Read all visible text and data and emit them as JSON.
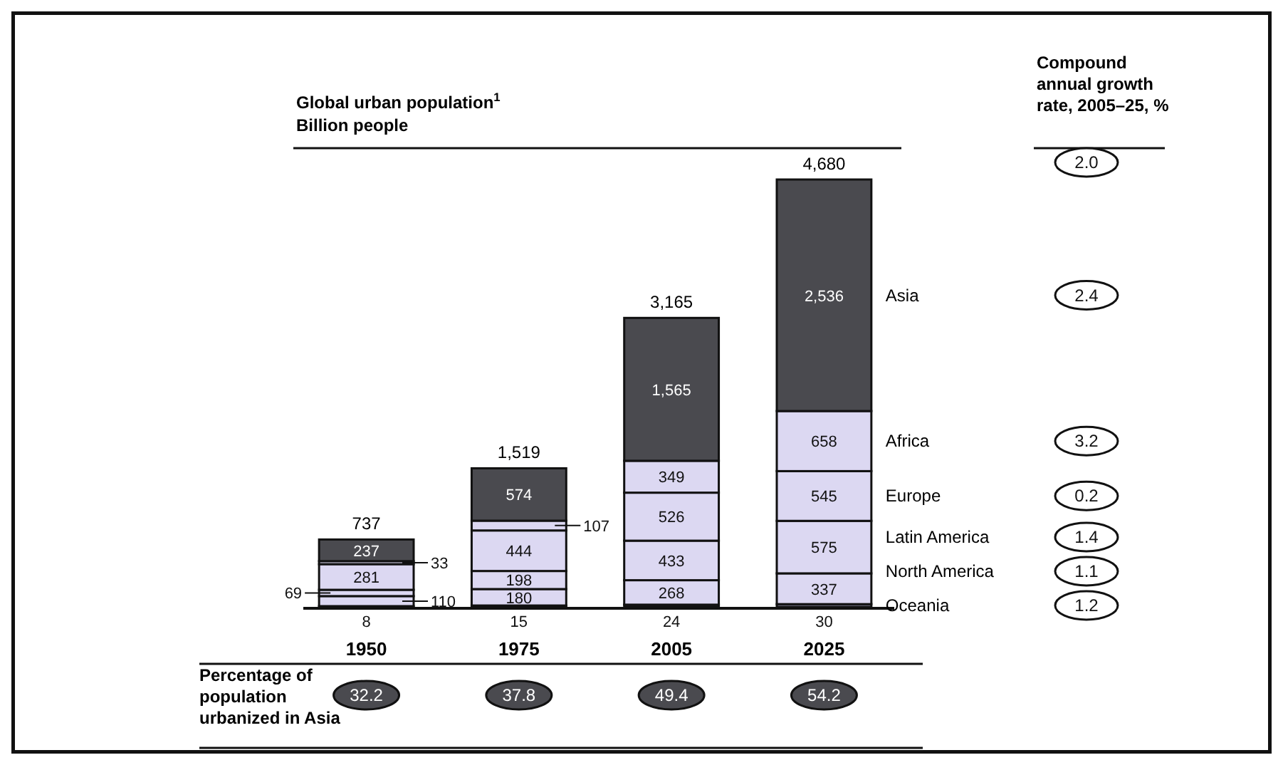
{
  "chart_data": {
    "type": "bar",
    "stacked": true,
    "title": "Global urban population$^{1}$",
    "subtitle": "Billion people",
    "categories": [
      "1950",
      "1975",
      "2005",
      "2025"
    ],
    "series": [
      {
        "name": "Oceania",
        "color": "#a9a5c4",
        "values": [
          8,
          15,
          24,
          30
        ],
        "value_labels": [
          "8",
          "15",
          "24",
          "30"
        ]
      },
      {
        "name": "North America",
        "color": "#dcd8f2",
        "values": [
          110,
          180,
          268,
          337
        ],
        "value_labels": [
          "110",
          "180",
          "268",
          "337"
        ]
      },
      {
        "name": "Latin America",
        "color": "#dcd8f2",
        "values": [
          69,
          198,
          433,
          575
        ],
        "value_labels": [
          "69",
          "198",
          "433",
          "575"
        ]
      },
      {
        "name": "Europe",
        "color": "#dcd8f2",
        "values": [
          281,
          444,
          526,
          545
        ],
        "value_labels": [
          "281",
          "444",
          "526",
          "545"
        ]
      },
      {
        "name": "Africa",
        "color": "#dcd8f2",
        "values": [
          33,
          107,
          349,
          658
        ],
        "value_labels": [
          "33",
          "107",
          "349",
          "658"
        ]
      },
      {
        "name": "Asia",
        "color": "#4a4a4f",
        "values": [
          237,
          574,
          1565,
          2536
        ],
        "value_labels": [
          "237",
          "574",
          "1,565",
          "2,536"
        ]
      }
    ],
    "totals": [
      "737",
      "1,519",
      "3,165",
      "4,680"
    ],
    "annotations": [
      "Compound annual growth rate, 2005–25, %",
      "2.0",
      "2.4",
      "3.2",
      "0.2",
      "1.4",
      "1.1",
      "1.2",
      "Percentage of population urbanized in Asia",
      "32.2",
      "37.8",
      "49.4",
      "54.2"
    ]
  }
}
